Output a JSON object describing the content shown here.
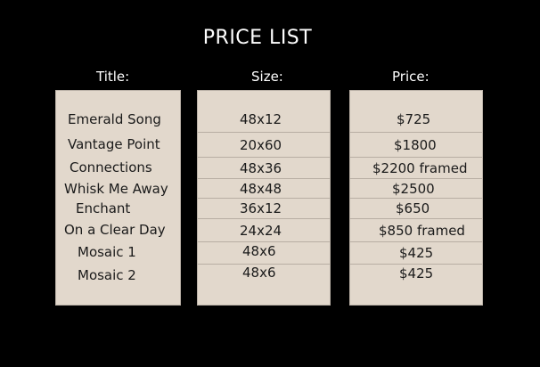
{
  "page": {
    "title": "PRICE LIST"
  },
  "headers": {
    "title": "Title:",
    "size": "Size:",
    "price": "Price:"
  },
  "items": [
    {
      "title": "Emerald Song",
      "size": "48x12",
      "price": "$725"
    },
    {
      "title": "Vantage Point",
      "size": "20x60",
      "price": "$1800"
    },
    {
      "title": "Connections",
      "size": "48x36",
      "price": "$2200 framed"
    },
    {
      "title": "Whisk Me Away",
      "size": "48x48",
      "price": "$2500"
    },
    {
      "title": "Enchant",
      "size": "36x12",
      "price": "$650"
    },
    {
      "title": "On a Clear Day",
      "size": "24x24",
      "price": "$850 framed"
    },
    {
      "title": "Mosaic 1",
      "size": "48x6",
      "price": "$425"
    },
    {
      "title": "Mosaic 2",
      "size": "48x6",
      "price": "$425"
    }
  ],
  "colors": {
    "background": "#000000",
    "panel": "#e2d8cc",
    "panel_text": "#1a1a1a",
    "heading_text": "#ffffff"
  }
}
